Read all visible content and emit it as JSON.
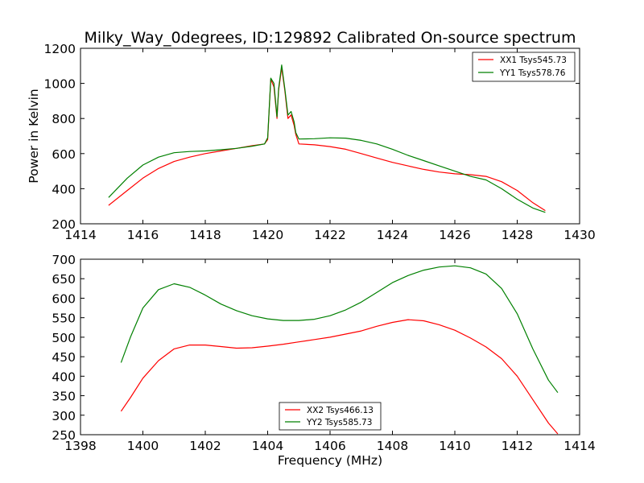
{
  "chart_data": [
    {
      "type": "line",
      "title": "Milky_Way_0degrees, ID:129892 Calibrated On-source spectrum",
      "xlabel": "",
      "ylabel": "Power in Kelvin",
      "xlim": [
        1414,
        1430
      ],
      "ylim": [
        200,
        1200
      ],
      "xticks": [
        1414,
        1416,
        1418,
        1420,
        1422,
        1424,
        1426,
        1428,
        1430
      ],
      "yticks": [
        200,
        400,
        600,
        800,
        1000,
        1200
      ],
      "grid": false,
      "legend_position": "top-right",
      "colors": {
        "XX1": "#ff0000",
        "YY1": "#008000"
      },
      "series": [
        {
          "name": "XX1 Tsys545.73",
          "color": "#ff0000",
          "x": [
            1414.9,
            1415.5,
            1416,
            1416.5,
            1417,
            1417.5,
            1418,
            1418.5,
            1419,
            1419.5,
            1419.9,
            1420.0,
            1420.1,
            1420.2,
            1420.3,
            1420.35,
            1420.45,
            1420.55,
            1420.65,
            1420.75,
            1420.85,
            1420.9,
            1421,
            1421.5,
            1422,
            1422.5,
            1423,
            1423.5,
            1424,
            1424.5,
            1425,
            1425.5,
            1426,
            1426.5,
            1427,
            1427.5,
            1428,
            1428.5,
            1428.9
          ],
          "values": [
            305,
            390,
            460,
            515,
            555,
            580,
            600,
            615,
            630,
            645,
            655,
            680,
            1025,
            980,
            800,
            960,
            1090,
            960,
            800,
            820,
            760,
            710,
            655,
            650,
            640,
            625,
            600,
            575,
            550,
            530,
            510,
            495,
            485,
            480,
            470,
            440,
            390,
            320,
            275
          ]
        },
        {
          "name": "YY1 Tsys578.76",
          "color": "#008000",
          "x": [
            1414.9,
            1415.5,
            1416,
            1416.5,
            1417,
            1417.5,
            1418,
            1418.5,
            1419,
            1419.5,
            1419.9,
            1420.0,
            1420.1,
            1420.2,
            1420.3,
            1420.35,
            1420.45,
            1420.55,
            1420.65,
            1420.75,
            1420.85,
            1420.9,
            1421,
            1421.5,
            1422,
            1422.5,
            1423,
            1423.5,
            1424,
            1424.5,
            1425,
            1425.5,
            1426,
            1426.5,
            1427,
            1427.5,
            1428,
            1428.5,
            1428.9
          ],
          "values": [
            350,
            460,
            535,
            580,
            605,
            612,
            615,
            622,
            630,
            642,
            655,
            690,
            1030,
            1000,
            810,
            970,
            1105,
            970,
            820,
            840,
            780,
            720,
            683,
            685,
            690,
            688,
            675,
            655,
            625,
            590,
            560,
            530,
            500,
            470,
            450,
            400,
            340,
            290,
            265
          ]
        }
      ]
    },
    {
      "type": "line",
      "title": "",
      "xlabel": "Frequency (MHz)",
      "ylabel": "",
      "xlim": [
        1398,
        1414
      ],
      "ylim": [
        250,
        700
      ],
      "xticks": [
        1398,
        1400,
        1402,
        1404,
        1406,
        1408,
        1410,
        1412,
        1414
      ],
      "yticks": [
        250,
        300,
        350,
        400,
        450,
        500,
        550,
        600,
        650,
        700
      ],
      "grid": false,
      "legend_position": "bottom-center",
      "colors": {
        "XX2": "#ff0000",
        "YY2": "#008000"
      },
      "series": [
        {
          "name": "XX2 Tsys466.13",
          "color": "#ff0000",
          "x": [
            1399.3,
            1399.6,
            1400,
            1400.5,
            1401,
            1401.5,
            1402,
            1402.5,
            1403,
            1403.5,
            1404,
            1404.5,
            1405,
            1405.5,
            1406,
            1406.5,
            1407,
            1407.5,
            1408,
            1408.5,
            1409,
            1409.5,
            1410,
            1410.5,
            1411,
            1411.5,
            1412,
            1412.5,
            1413,
            1413.3
          ],
          "values": [
            310,
            345,
            395,
            440,
            470,
            480,
            480,
            476,
            472,
            473,
            477,
            482,
            488,
            494,
            500,
            508,
            516,
            528,
            538,
            545,
            542,
            532,
            518,
            498,
            475,
            445,
            400,
            340,
            280,
            252
          ]
        },
        {
          "name": "YY2 Tsys585.73",
          "color": "#008000",
          "x": [
            1399.3,
            1399.6,
            1400,
            1400.5,
            1401,
            1401.5,
            1402,
            1402.5,
            1403,
            1403.5,
            1404,
            1404.5,
            1405,
            1405.5,
            1406,
            1406.5,
            1407,
            1407.5,
            1408,
            1408.5,
            1409,
            1409.5,
            1410,
            1410.5,
            1411,
            1411.5,
            1412,
            1412.5,
            1413,
            1413.3
          ],
          "values": [
            435,
            500,
            575,
            622,
            637,
            628,
            608,
            585,
            568,
            555,
            547,
            543,
            543,
            546,
            555,
            570,
            590,
            615,
            640,
            658,
            672,
            680,
            683,
            678,
            662,
            625,
            560,
            470,
            390,
            358
          ]
        }
      ]
    }
  ]
}
